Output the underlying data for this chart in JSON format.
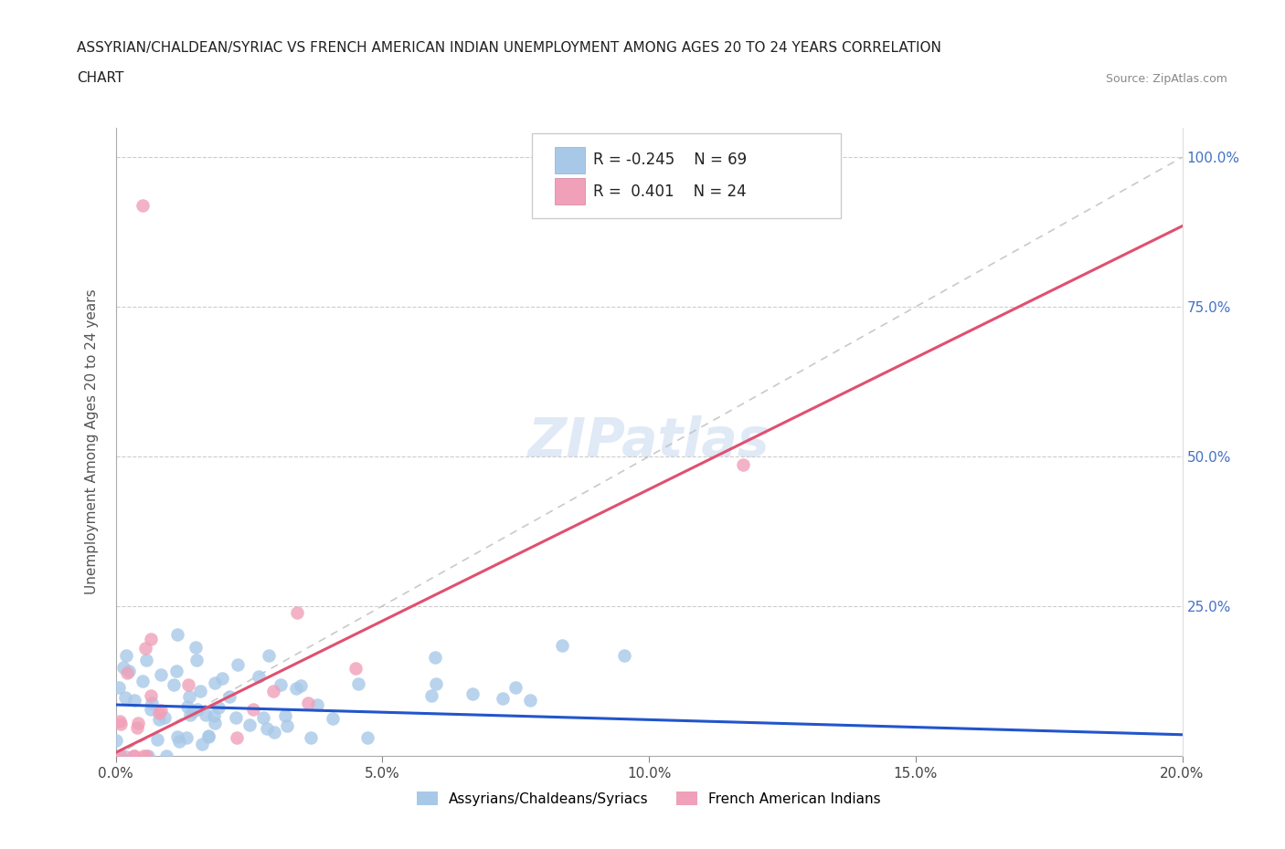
{
  "title_line1": "ASSYRIAN/CHALDEAN/SYRIAC VS FRENCH AMERICAN INDIAN UNEMPLOYMENT AMONG AGES 20 TO 24 YEARS CORRELATION",
  "title_line2": "CHART",
  "source_text": "Source: ZipAtlas.com",
  "ylabel": "Unemployment Among Ages 20 to 24 years",
  "xlim": [
    0.0,
    0.2
  ],
  "ylim": [
    0.0,
    1.05
  ],
  "xtick_labels": [
    "0.0%",
    "5.0%",
    "10.0%",
    "15.0%",
    "20.0%"
  ],
  "xtick_vals": [
    0.0,
    0.05,
    0.1,
    0.15,
    0.2
  ],
  "ytick_vals": [
    0.25,
    0.5,
    0.75,
    1.0
  ],
  "right_ytick_labels": [
    "25.0%",
    "50.0%",
    "75.0%",
    "100.0%"
  ],
  "color_blue": "#a8c8e8",
  "color_pink": "#f0a0b8",
  "line_blue": "#2255cc",
  "line_pink": "#e05070",
  "line_diag": "#c0c0c0",
  "watermark": "ZIPatlas"
}
